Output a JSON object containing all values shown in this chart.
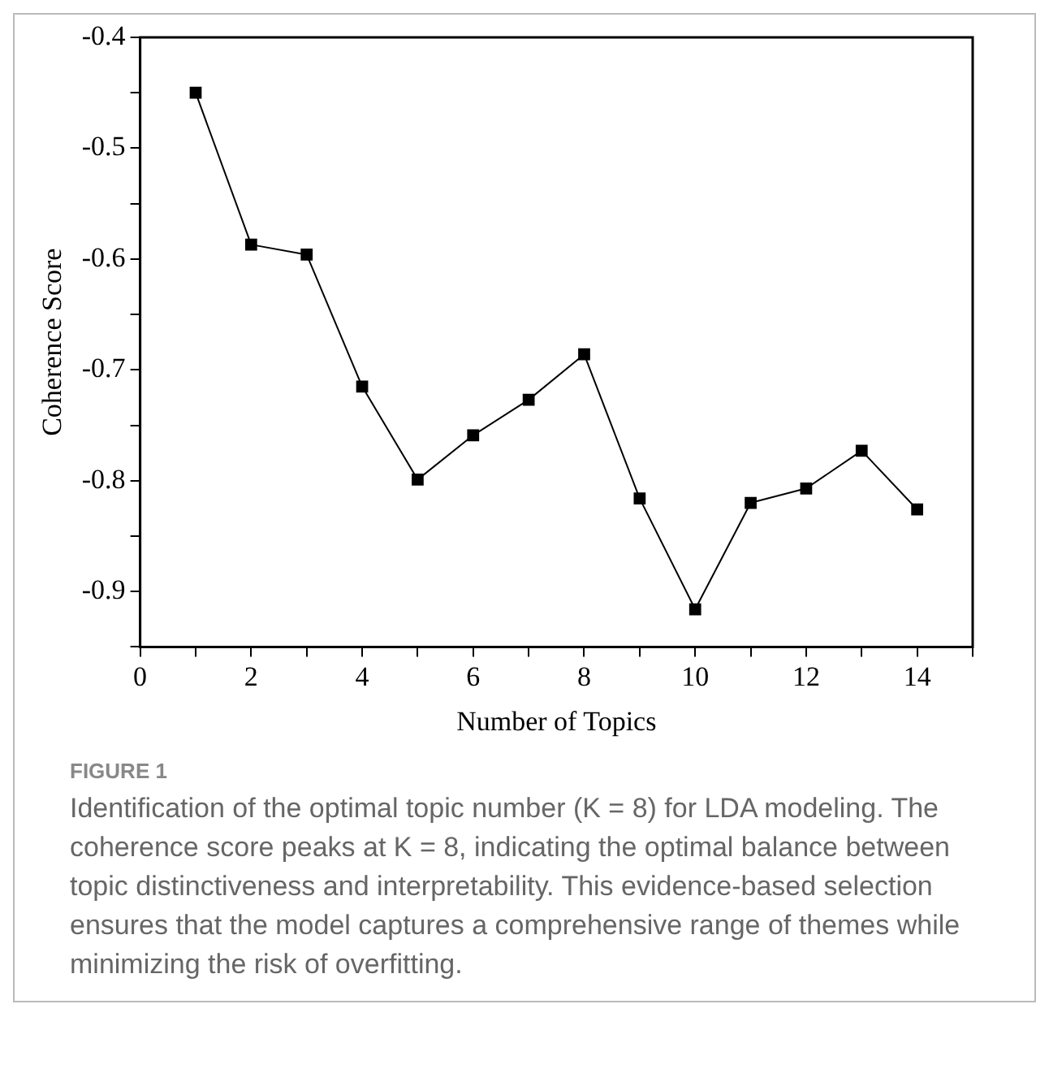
{
  "chart_data": {
    "type": "line",
    "xlabel": "Number of Topics",
    "ylabel": "Coherence Score",
    "x": [
      1,
      2,
      3,
      4,
      5,
      6,
      7,
      8,
      9,
      10,
      11,
      12,
      13,
      14
    ],
    "series": [
      {
        "color": "#000000",
        "values": [
          -0.45,
          -0.587,
          -0.596,
          -0.715,
          -0.799,
          -0.759,
          -0.727,
          -0.686,
          -0.816,
          -0.916,
          -0.82,
          -0.807,
          -0.773,
          -0.826
        ]
      }
    ],
    "xlim": [
      0,
      15
    ],
    "xticks": [
      0,
      {
        "value": 1,
        "label": null
      },
      2,
      {
        "value": 3,
        "label": null
      },
      4,
      {
        "value": 5,
        "label": null
      },
      6,
      {
        "value": 7,
        "label": null
      },
      8,
      {
        "value": 9,
        "label": null
      },
      10,
      {
        "value": 11,
        "label": null
      },
      12,
      {
        "value": 13,
        "label": null
      },
      14,
      {
        "value": 15,
        "label": null
      }
    ],
    "ylim": [
      -0.95,
      -0.4
    ],
    "yticks": [
      {
        "value": -0.95,
        "label": null
      },
      -0.9,
      {
        "value": -0.85,
        "label": null
      },
      -0.8,
      {
        "value": -0.75,
        "label": null
      },
      -0.7,
      {
        "value": -0.65,
        "label": null
      },
      -0.6,
      {
        "value": -0.55,
        "label": null
      },
      -0.5,
      {
        "value": -0.45,
        "label": null
      },
      -0.4
    ],
    "grid": false,
    "legend": false,
    "marker": "square",
    "line_style": "solid",
    "annotations": [
      "FIGURE 1",
      "Identification of the optimal topic number (K = 8) for LDA modeling. The coherence score peaks at K = 8, indicating the optimal balance between topic distinctiveness and interpretability. This evidence-based selection ensures that the model captures a comprehensive range of themes while minimizing the risk of overfitting."
    ]
  }
}
